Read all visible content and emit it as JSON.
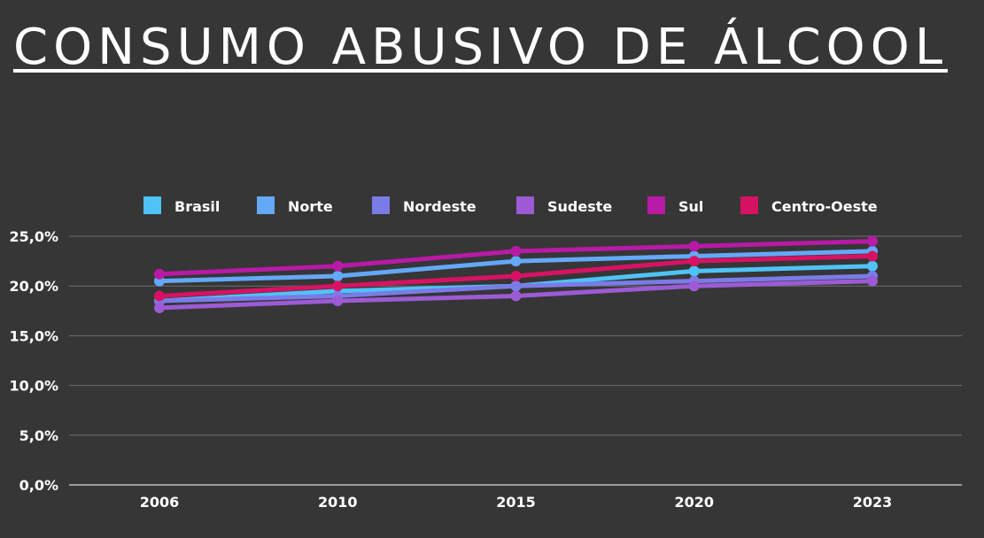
{
  "chart_data": {
    "type": "line",
    "title": "CONSUMO ABUSIVO DE ÁLCOOL",
    "categories": [
      "2006",
      "2010",
      "2015",
      "2020",
      "2023"
    ],
    "ylim": [
      0,
      25
    ],
    "yticks": [
      0,
      5,
      10,
      15,
      20,
      25
    ],
    "ytick_labels": [
      "0,0%",
      "5,0%",
      "10,0%",
      "15,0%",
      "20,0%",
      "25,0%"
    ],
    "grid": true,
    "legend_position": "top",
    "series": [
      {
        "name": "Brasil",
        "color": "#4FC3F7",
        "values": [
          18.5,
          19.5,
          20.0,
          21.5,
          22.0
        ]
      },
      {
        "name": "Norte",
        "color": "#64A8F8",
        "values": [
          20.5,
          21.0,
          22.5,
          23.0,
          23.5
        ]
      },
      {
        "name": "Nordeste",
        "color": "#7B7BE8",
        "values": [
          18.5,
          19.0,
          20.0,
          20.5,
          21.0
        ]
      },
      {
        "name": "Sudeste",
        "color": "#9C5BD4",
        "values": [
          17.8,
          18.5,
          19.0,
          20.0,
          20.5
        ]
      },
      {
        "name": "Sul",
        "color": "#B81AA6",
        "values": [
          21.2,
          22.0,
          23.5,
          24.0,
          24.5
        ]
      },
      {
        "name": "Centro-Oeste",
        "color": "#D81263",
        "values": [
          19.0,
          20.0,
          21.0,
          22.5,
          23.0
        ]
      }
    ]
  }
}
